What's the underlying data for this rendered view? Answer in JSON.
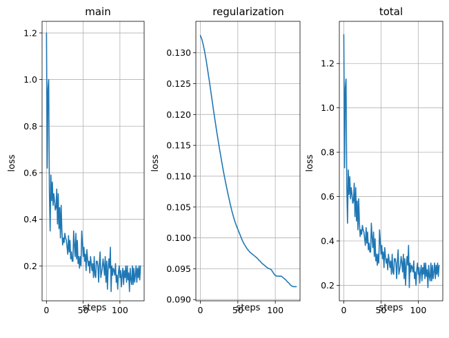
{
  "figure": {
    "background": "#ffffff",
    "line_color": "#1f77b4",
    "grid_color": "#b0b0b0"
  },
  "chart_data": [
    {
      "type": "line",
      "title": "main",
      "xlabel": "steps",
      "ylabel": "loss",
      "grid": true,
      "xlim": [
        -6,
        133
      ],
      "ylim": [
        0.05,
        1.25
      ],
      "xticks": [
        0,
        50,
        100
      ],
      "xtick_labels": [
        "0",
        "50",
        "100"
      ],
      "yticks": [
        0.2,
        0.4,
        0.6,
        0.8,
        1.0,
        1.2
      ],
      "ytick_labels": [
        "0.2",
        "0.4",
        "0.6",
        "0.8",
        "1.0",
        "1.2"
      ],
      "series": [
        {
          "color": "#1f77b4",
          "x": [
            0,
            1,
            2,
            3,
            4,
            5,
            6,
            7,
            8,
            9,
            10,
            11,
            12,
            13,
            14,
            15,
            16,
            17,
            18,
            19,
            20,
            21,
            22,
            23,
            24,
            25,
            26,
            27,
            28,
            29,
            30,
            31,
            32,
            33,
            34,
            35,
            36,
            37,
            38,
            39,
            40,
            41,
            42,
            43,
            44,
            45,
            46,
            47,
            48,
            49,
            50,
            51,
            52,
            53,
            54,
            55,
            56,
            57,
            58,
            59,
            60,
            61,
            62,
            63,
            64,
            65,
            66,
            67,
            68,
            69,
            70,
            71,
            72,
            73,
            74,
            75,
            76,
            77,
            78,
            79,
            80,
            81,
            82,
            83,
            84,
            85,
            86,
            87,
            88,
            89,
            90,
            91,
            92,
            93,
            94,
            95,
            96,
            97,
            98,
            99,
            100,
            101,
            102,
            103,
            104,
            105,
            106,
            107,
            108,
            109,
            110,
            111,
            112,
            113,
            114,
            115,
            116,
            117,
            118,
            119,
            120,
            121,
            122,
            123,
            124,
            125,
            126,
            127,
            128
          ],
          "y": [
            1.2,
            0.62,
            0.96,
            1.0,
            0.52,
            0.35,
            0.59,
            0.48,
            0.56,
            0.46,
            0.51,
            0.48,
            0.44,
            0.45,
            0.53,
            0.38,
            0.51,
            0.36,
            0.45,
            0.32,
            0.46,
            0.35,
            0.29,
            0.32,
            0.3,
            0.34,
            0.32,
            0.31,
            0.28,
            0.25,
            0.33,
            0.26,
            0.31,
            0.23,
            0.26,
            0.22,
            0.22,
            0.35,
            0.29,
            0.24,
            0.34,
            0.23,
            0.31,
            0.21,
            0.24,
            0.19,
            0.24,
            0.2,
            0.35,
            0.3,
            0.24,
            0.28,
            0.22,
            0.25,
            0.18,
            0.27,
            0.23,
            0.2,
            0.22,
            0.17,
            0.24,
            0.21,
            0.18,
            0.21,
            0.15,
            0.24,
            0.16,
            0.15,
            0.22,
            0.22,
            0.2,
            0.13,
            0.21,
            0.26,
            0.15,
            0.17,
            0.19,
            0.23,
            0.2,
            0.16,
            0.24,
            0.13,
            0.22,
            0.1,
            0.19,
            0.23,
            0.19,
            0.28,
            0.09,
            0.2,
            0.16,
            0.19,
            0.18,
            0.16,
            0.21,
            0.13,
            0.16,
            0.1,
            0.17,
            0.2,
            0.15,
            0.18,
            0.11,
            0.16,
            0.19,
            0.12,
            0.18,
            0.15,
            0.2,
            0.13,
            0.2,
            0.14,
            0.17,
            0.09,
            0.19,
            0.14,
            0.12,
            0.2,
            0.12,
            0.19,
            0.13,
            0.16,
            0.2,
            0.13,
            0.19,
            0.15,
            0.2,
            0.14,
            0.2
          ]
        }
      ]
    },
    {
      "type": "line",
      "title": "regularization",
      "xlabel": "steps",
      "ylabel": "loss",
      "grid": true,
      "xlim": [
        -6,
        133
      ],
      "ylim": [
        0.0898,
        0.1351
      ],
      "xticks": [
        0,
        50,
        100
      ],
      "xtick_labels": [
        "0",
        "50",
        "100"
      ],
      "yticks": [
        0.09,
        0.095,
        0.1,
        0.105,
        0.11,
        0.115,
        0.12,
        0.125,
        0.13
      ],
      "ytick_labels": [
        "0.090",
        "0.095",
        "0.100",
        "0.105",
        "0.110",
        "0.115",
        "0.120",
        "0.125",
        "0.130"
      ],
      "series": [
        {
          "color": "#1f77b4",
          "x": [
            0,
            2,
            4,
            6,
            8,
            10,
            12,
            14,
            16,
            18,
            20,
            22,
            24,
            26,
            28,
            30,
            32,
            34,
            36,
            38,
            40,
            42,
            44,
            46,
            48,
            50,
            52,
            54,
            56,
            58,
            60,
            62,
            64,
            66,
            68,
            70,
            72,
            74,
            76,
            78,
            80,
            82,
            84,
            86,
            88,
            90,
            92,
            94,
            96,
            98,
            100,
            102,
            104,
            106,
            108,
            110,
            112,
            114,
            116,
            118,
            120,
            122,
            124,
            126,
            128
          ],
          "y": [
            0.1328,
            0.1322,
            0.1312,
            0.13,
            0.1286,
            0.127,
            0.1254,
            0.1237,
            0.122,
            0.1203,
            0.1187,
            0.1171,
            0.1156,
            0.1141,
            0.1127,
            0.1113,
            0.11,
            0.1088,
            0.1076,
            0.1065,
            0.1054,
            0.1044,
            0.1035,
            0.1027,
            0.102,
            0.1014,
            0.1008,
            0.1002,
            0.0996,
            0.0991,
            0.0987,
            0.0983,
            0.098,
            0.0977,
            0.0975,
            0.0973,
            0.0971,
            0.0969,
            0.0967,
            0.0964,
            0.0962,
            0.0959,
            0.0957,
            0.0955,
            0.0953,
            0.0951,
            0.095,
            0.0949,
            0.0946,
            0.0942,
            0.0939,
            0.0938,
            0.0938,
            0.0938,
            0.0938,
            0.0936,
            0.0934,
            0.0932,
            0.0929,
            0.0927,
            0.0924,
            0.0922,
            0.0921,
            0.0921,
            0.0921
          ]
        }
      ]
    },
    {
      "type": "line",
      "title": "total",
      "xlabel": "steps",
      "ylabel": "loss",
      "grid": true,
      "xlim": [
        -6,
        133
      ],
      "ylim": [
        0.13,
        1.39
      ],
      "xticks": [
        0,
        50,
        100
      ],
      "xtick_labels": [
        "0",
        "50",
        "100"
      ],
      "yticks": [
        0.2,
        0.4,
        0.6,
        0.8,
        1.0,
        1.2
      ],
      "ytick_labels": [
        "0.2",
        "0.4",
        "0.6",
        "0.8",
        "1.0",
        "1.2"
      ],
      "series": [
        {
          "color": "#1f77b4",
          "x": [
            0,
            1,
            2,
            3,
            4,
            5,
            6,
            7,
            8,
            9,
            10,
            11,
            12,
            13,
            14,
            15,
            16,
            17,
            18,
            19,
            20,
            21,
            22,
            23,
            24,
            25,
            26,
            27,
            28,
            29,
            30,
            31,
            32,
            33,
            34,
            35,
            36,
            37,
            38,
            39,
            40,
            41,
            42,
            43,
            44,
            45,
            46,
            47,
            48,
            49,
            50,
            51,
            52,
            53,
            54,
            55,
            56,
            57,
            58,
            59,
            60,
            61,
            62,
            63,
            64,
            65,
            66,
            67,
            68,
            69,
            70,
            71,
            72,
            73,
            74,
            75,
            76,
            77,
            78,
            79,
            80,
            81,
            82,
            83,
            84,
            85,
            86,
            87,
            88,
            89,
            90,
            91,
            92,
            93,
            94,
            95,
            96,
            97,
            98,
            99,
            100,
            101,
            102,
            103,
            104,
            105,
            106,
            107,
            108,
            109,
            110,
            111,
            112,
            113,
            114,
            115,
            116,
            117,
            118,
            119,
            120,
            121,
            122,
            123,
            124,
            125,
            126,
            127,
            128
          ],
          "y": [
            1.33,
            0.73,
            1.09,
            1.13,
            0.65,
            0.48,
            0.72,
            0.61,
            0.69,
            0.59,
            0.64,
            0.61,
            0.57,
            0.58,
            0.66,
            0.51,
            0.64,
            0.49,
            0.58,
            0.45,
            0.59,
            0.48,
            0.42,
            0.45,
            0.43,
            0.47,
            0.45,
            0.44,
            0.41,
            0.38,
            0.46,
            0.39,
            0.44,
            0.36,
            0.39,
            0.35,
            0.35,
            0.48,
            0.42,
            0.37,
            0.44,
            0.33,
            0.41,
            0.31,
            0.34,
            0.29,
            0.34,
            0.3,
            0.45,
            0.4,
            0.34,
            0.38,
            0.32,
            0.35,
            0.28,
            0.37,
            0.33,
            0.3,
            0.32,
            0.27,
            0.34,
            0.31,
            0.28,
            0.31,
            0.25,
            0.34,
            0.26,
            0.25,
            0.32,
            0.32,
            0.3,
            0.23,
            0.31,
            0.36,
            0.25,
            0.27,
            0.29,
            0.33,
            0.3,
            0.26,
            0.34,
            0.23,
            0.32,
            0.2,
            0.29,
            0.33,
            0.29,
            0.38,
            0.19,
            0.3,
            0.26,
            0.29,
            0.28,
            0.26,
            0.31,
            0.23,
            0.26,
            0.2,
            0.27,
            0.3,
            0.25,
            0.28,
            0.21,
            0.26,
            0.29,
            0.22,
            0.28,
            0.25,
            0.3,
            0.23,
            0.3,
            0.24,
            0.27,
            0.19,
            0.29,
            0.24,
            0.22,
            0.3,
            0.22,
            0.29,
            0.23,
            0.26,
            0.3,
            0.23,
            0.29,
            0.25,
            0.3,
            0.24,
            0.29
          ]
        }
      ]
    }
  ]
}
